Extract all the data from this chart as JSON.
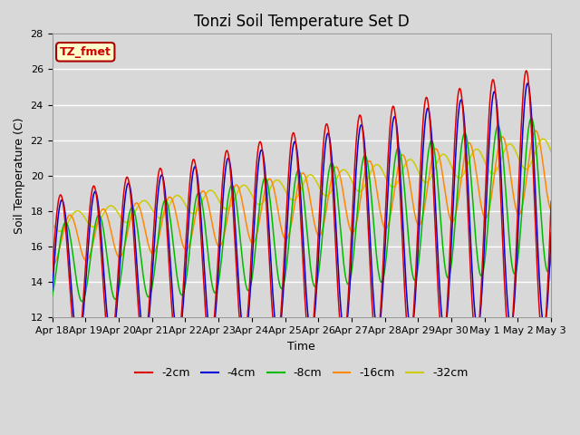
{
  "title": "Tonzi Soil Temperature Set D",
  "xlabel": "Time",
  "ylabel": "Soil Temperature (C)",
  "ylim": [
    12,
    28
  ],
  "legend_labels": [
    "-2cm",
    "-4cm",
    "-8cm",
    "-16cm",
    "-32cm"
  ],
  "legend_colors": [
    "#dd0000",
    "#0000dd",
    "#00bb00",
    "#ff8800",
    "#cccc00"
  ],
  "annotation_text": "TZ_fmet",
  "annotation_bg": "#ffffcc",
  "annotation_border": "#aa0000",
  "bg_color": "#d8d8d8",
  "n_points": 720,
  "title_fontsize": 12,
  "axis_label_fontsize": 9,
  "tick_fontsize": 8
}
